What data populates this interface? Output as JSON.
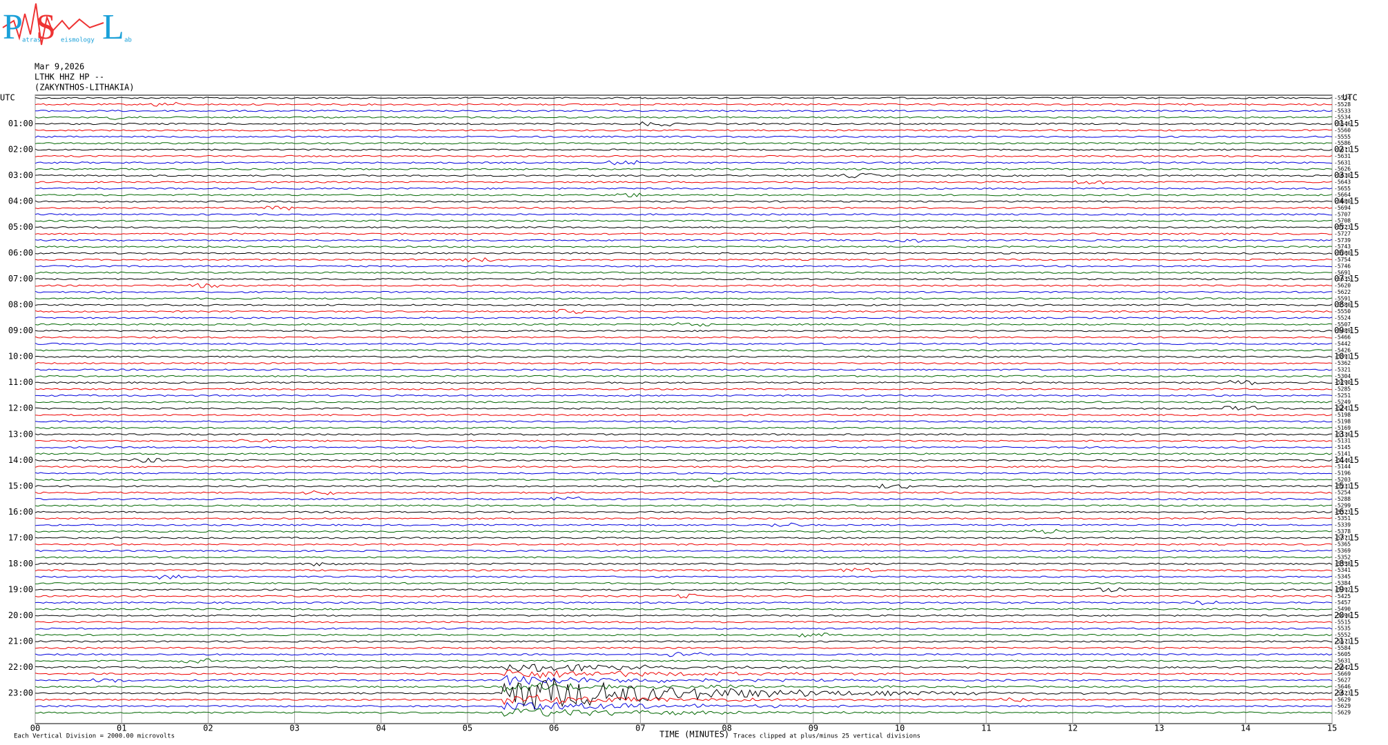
{
  "logo": {
    "letters": [
      "P",
      "S",
      "L"
    ],
    "small": [
      "atras",
      "eismology",
      "ab"
    ]
  },
  "header": {
    "date": "Mar 9,2026",
    "station": "LTHK HHZ HP --",
    "location": "(ZAKYNTHOS-LITHAKIA)"
  },
  "left_axis": {
    "title": "UTC",
    "labels": [
      "01:00",
      "02:00",
      "03:00",
      "04:00",
      "05:00",
      "06:00",
      "07:00",
      "08:00",
      "09:00",
      "10:00",
      "11:00",
      "12:00",
      "13:00",
      "14:00",
      "15:00",
      "16:00",
      "17:00",
      "18:00",
      "19:00",
      "20:00",
      "21:00",
      "22:00",
      "23:00"
    ]
  },
  "right_axis": {
    "title": "UTC",
    "labels": [
      "01:15",
      "02:15",
      "03:15",
      "04:15",
      "05:15",
      "06:15",
      "07:15",
      "08:15",
      "09:15",
      "10:15",
      "11:15",
      "12:15",
      "13:15",
      "14:15",
      "15:15",
      "16:15",
      "17:15",
      "18:15",
      "19:15",
      "20:15",
      "21:15",
      "22:15",
      "23:15"
    ]
  },
  "trace_offsets": [
    -5524,
    -5528,
    -5533,
    -5534,
    -5546,
    -5560,
    -5555,
    -5586,
    -5611,
    -5631,
    -5631,
    -5626,
    -5630,
    -5643,
    -5655,
    -5664,
    -5680,
    -5694,
    -5707,
    -5708,
    -5723,
    -5727,
    -5739,
    -5743,
    -5760,
    -5754,
    -5746,
    -5691,
    -5635,
    -5620,
    -5622,
    -5591,
    -5580,
    -5550,
    -5524,
    -5507,
    -5489,
    -5466,
    -5442,
    -5426,
    -5391,
    -5362,
    -5321,
    -5304,
    -5290,
    -5285,
    -5251,
    -5249,
    -5241,
    -5198,
    -5198,
    -5169,
    -5136,
    -5131,
    -5145,
    -5141,
    -5146,
    -5144,
    -5196,
    -5203,
    -5231,
    -5254,
    -5288,
    -5299,
    -5323,
    -5351,
    -5339,
    -5378,
    -5371,
    -5365,
    -5369,
    -5352,
    -5358,
    -5341,
    -5345,
    -5384,
    -5392,
    -5425,
    -5457,
    -5490,
    -5496,
    -5515,
    -5535,
    -5552,
    -5571,
    -5584,
    -5605,
    -5631,
    -5642,
    -5669,
    -5627,
    -5646,
    -5623,
    -5629,
    -5629,
    -5629
  ],
  "bottom_axis": {
    "labels": [
      "00",
      "01",
      "02",
      "03",
      "04",
      "05",
      "06",
      "07",
      "08",
      "09",
      "10",
      "11",
      "12",
      "13",
      "14",
      "15"
    ],
    "title": "TIME (MINUTES)"
  },
  "footer": {
    "scale": "Each Vertical Division = 2000.00 microvolts",
    "clip": "Traces clipped at plus/minus 25 vertical divisions"
  }
}
